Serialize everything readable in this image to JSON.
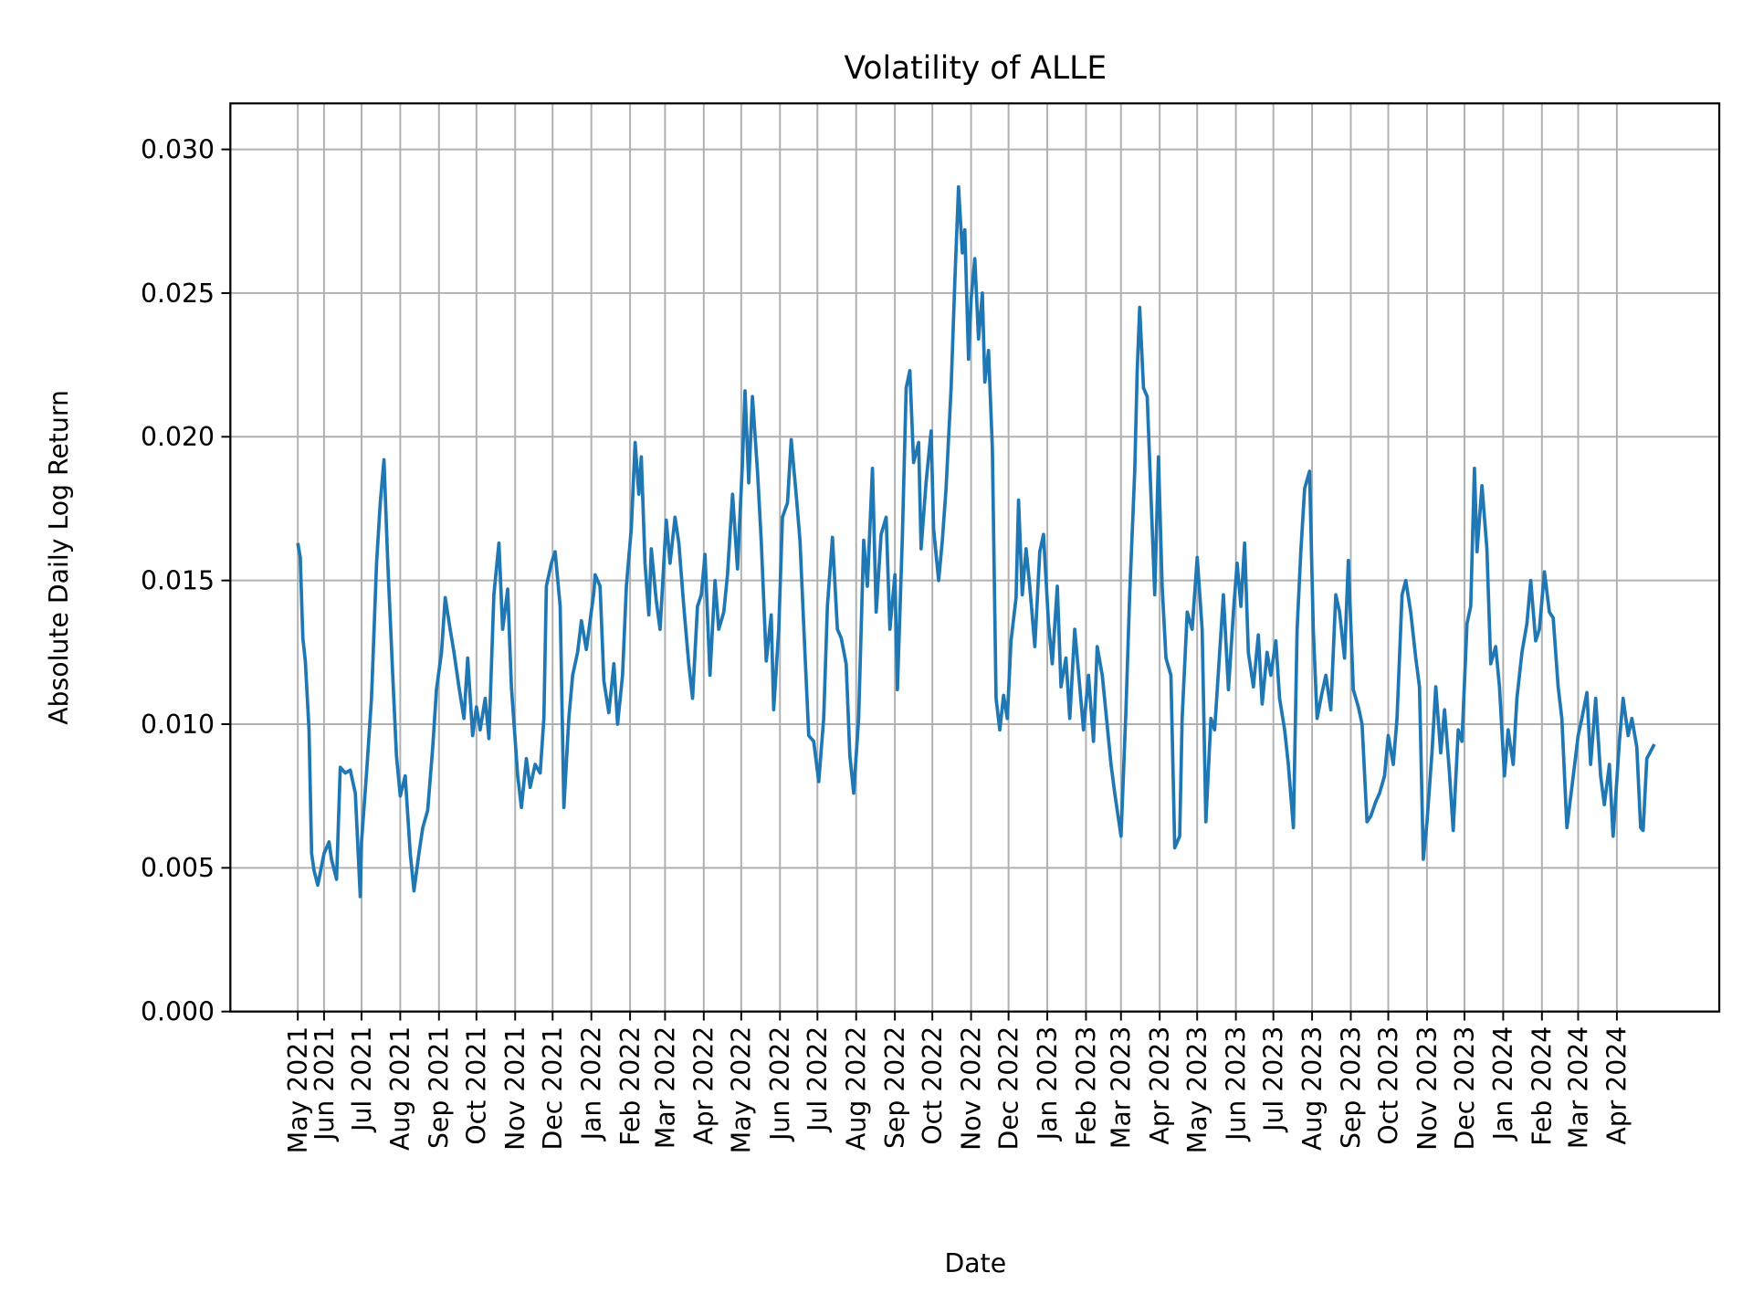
{
  "chart_data": {
    "type": "line",
    "title": "Volatility of ALLE",
    "xlabel": "Date",
    "ylabel": "Absolute Daily Log Return",
    "grid": true,
    "line_color": "#1f77b4",
    "xlim": [
      "2021-03-18",
      "2024-06-22"
    ],
    "ylim": [
      0,
      0.0316
    ],
    "yticks": [
      0.0,
      0.005,
      0.01,
      0.015,
      0.02,
      0.025,
      0.03
    ],
    "ytick_labels": [
      "0.000",
      "0.005",
      "0.010",
      "0.015",
      "0.020",
      "0.025",
      "0.030"
    ],
    "xticks": [
      "2021-05-11",
      "2021-06-01",
      "2021-07-01",
      "2021-08-01",
      "2021-09-01",
      "2021-10-01",
      "2021-11-01",
      "2021-12-01",
      "2022-01-01",
      "2022-02-01",
      "2022-03-01",
      "2022-04-01",
      "2022-05-01",
      "2022-06-01",
      "2022-07-01",
      "2022-08-01",
      "2022-09-01",
      "2022-10-01",
      "2022-11-01",
      "2022-12-01",
      "2023-01-01",
      "2023-02-01",
      "2023-03-01",
      "2023-04-01",
      "2023-05-01",
      "2023-06-01",
      "2023-07-01",
      "2023-08-01",
      "2023-09-01",
      "2023-10-01",
      "2023-11-01",
      "2023-12-01",
      "2024-01-01",
      "2024-02-01",
      "2024-03-01",
      "2024-04-01"
    ],
    "xtick_labels": [
      "May 2021",
      "Jun 2021",
      "Jul 2021",
      "Aug 2021",
      "Sep 2021",
      "Oct 2021",
      "Nov 2021",
      "Dec 2021",
      "Jan 2022",
      "Feb 2022",
      "Mar 2022",
      "Apr 2022",
      "May 2022",
      "Jun 2022",
      "Jul 2022",
      "Aug 2022",
      "Sep 2022",
      "Oct 2022",
      "Nov 2022",
      "Dec 2022",
      "Jan 2023",
      "Feb 2023",
      "Mar 2023",
      "Apr 2023",
      "May 2023",
      "Jun 2023",
      "Jul 2023",
      "Aug 2023",
      "Sep 2023",
      "Oct 2023",
      "Nov 2023",
      "Dec 2023",
      "Jan 2024",
      "Feb 2024",
      "Mar 2024",
      "Apr 2024"
    ],
    "series": [
      {
        "x": [
          "2021-05-11",
          "2021-05-13",
          "2021-05-15",
          "2021-05-17",
          "2021-05-20",
          "2021-05-22",
          "2021-05-24",
          "2021-05-27",
          "2021-06-01",
          "2021-06-05",
          "2021-06-07",
          "2021-06-11",
          "2021-06-14",
          "2021-06-18",
          "2021-06-22",
          "2021-06-26",
          "2021-06-30",
          "2021-07-01",
          "2021-07-05",
          "2021-07-09",
          "2021-07-13",
          "2021-07-16",
          "2021-07-19",
          "2021-07-22",
          "2021-07-26",
          "2021-07-29",
          "2021-08-01",
          "2021-08-05",
          "2021-08-09",
          "2021-08-12",
          "2021-08-16",
          "2021-08-19",
          "2021-08-23",
          "2021-08-27",
          "2021-08-30",
          "2021-09-03",
          "2021-09-06",
          "2021-09-10",
          "2021-09-13",
          "2021-09-17",
          "2021-09-21",
          "2021-09-24",
          "2021-09-28",
          "2021-10-01",
          "2021-10-04",
          "2021-10-08",
          "2021-10-11",
          "2021-10-15",
          "2021-10-19",
          "2021-10-22",
          "2021-10-26",
          "2021-10-29",
          "2021-11-03",
          "2021-11-06",
          "2021-11-10",
          "2021-11-13",
          "2021-11-17",
          "2021-11-21",
          "2021-11-24",
          "2021-11-26",
          "2021-11-30",
          "2021-12-03",
          "2021-12-07",
          "2021-12-10",
          "2021-12-14",
          "2021-12-17",
          "2021-12-21",
          "2021-12-24",
          "2021-12-28",
          "2022-01-03",
          "2022-01-04",
          "2022-01-08",
          "2022-01-11",
          "2022-01-15",
          "2022-01-19",
          "2022-01-22",
          "2022-01-26",
          "2022-01-29",
          "2022-02-02",
          "2022-02-05",
          "2022-02-08",
          "2022-02-10",
          "2022-02-13",
          "2022-02-16",
          "2022-02-18",
          "2022-02-22",
          "2022-02-25",
          "2022-03-02",
          "2022-03-05",
          "2022-03-09",
          "2022-03-12",
          "2022-03-16",
          "2022-03-20",
          "2022-03-23",
          "2022-03-27",
          "2022-03-30",
          "2022-04-02",
          "2022-04-06",
          "2022-04-10",
          "2022-04-13",
          "2022-04-17",
          "2022-04-20",
          "2022-04-24",
          "2022-04-28",
          "2022-05-02",
          "2022-05-04",
          "2022-05-07",
          "2022-05-10",
          "2022-05-14",
          "2022-05-17",
          "2022-05-21",
          "2022-05-25",
          "2022-05-27",
          "2022-05-31",
          "2022-06-03",
          "2022-06-07",
          "2022-06-10",
          "2022-06-14",
          "2022-06-17",
          "2022-06-21",
          "2022-06-24",
          "2022-06-28",
          "2022-07-02",
          "2022-07-06",
          "2022-07-09",
          "2022-07-13",
          "2022-07-17",
          "2022-07-20",
          "2022-07-24",
          "2022-07-27",
          "2022-07-30",
          "2022-08-03",
          "2022-08-07",
          "2022-08-10",
          "2022-08-14",
          "2022-08-17",
          "2022-08-21",
          "2022-08-25",
          "2022-08-28",
          "2022-09-01",
          "2022-09-03",
          "2022-09-07",
          "2022-09-10",
          "2022-09-13",
          "2022-09-16",
          "2022-09-20",
          "2022-09-22",
          "2022-09-26",
          "2022-09-30",
          "2022-10-02",
          "2022-10-06",
          "2022-10-09",
          "2022-10-12",
          "2022-10-16",
          "2022-10-19",
          "2022-10-22",
          "2022-10-25",
          "2022-10-27",
          "2022-10-30",
          "2022-11-01",
          "2022-11-04",
          "2022-11-07",
          "2022-11-10",
          "2022-11-12",
          "2022-11-15",
          "2022-11-18",
          "2022-11-21",
          "2022-11-24",
          "2022-11-27",
          "2022-11-30",
          "2022-12-03",
          "2022-12-07",
          "2022-12-09",
          "2022-12-12",
          "2022-12-15",
          "2022-12-18",
          "2022-12-22",
          "2022-12-26",
          "2022-12-29",
          "2023-01-02",
          "2023-01-05",
          "2023-01-09",
          "2023-01-12",
          "2023-01-16",
          "2023-01-19",
          "2023-01-23",
          "2023-01-27",
          "2023-01-30",
          "2023-02-03",
          "2023-02-07",
          "2023-02-10",
          "2023-02-14",
          "2023-02-17",
          "2023-02-21",
          "2023-02-24",
          "2023-03-01",
          "2023-03-05",
          "2023-03-08",
          "2023-03-12",
          "2023-03-14",
          "2023-03-16",
          "2023-03-19",
          "2023-03-22",
          "2023-03-25",
          "2023-03-28",
          "2023-03-31",
          "2023-04-03",
          "2023-04-06",
          "2023-04-10",
          "2023-04-13",
          "2023-04-17",
          "2023-04-19",
          "2023-04-23",
          "2023-04-27",
          "2023-05-01",
          "2023-05-05",
          "2023-05-08",
          "2023-05-12",
          "2023-05-15",
          "2023-05-19",
          "2023-05-22",
          "2023-05-26",
          "2023-05-30",
          "2023-06-02",
          "2023-06-05",
          "2023-06-08",
          "2023-06-11",
          "2023-06-15",
          "2023-06-19",
          "2023-06-22",
          "2023-06-26",
          "2023-06-29",
          "2023-07-03",
          "2023-07-06",
          "2023-07-10",
          "2023-07-13",
          "2023-07-17",
          "2023-07-20",
          "2023-07-23",
          "2023-07-26",
          "2023-07-30",
          "2023-08-02",
          "2023-08-05",
          "2023-08-09",
          "2023-08-12",
          "2023-08-16",
          "2023-08-20",
          "2023-08-23",
          "2023-08-27",
          "2023-08-30",
          "2023-09-03",
          "2023-09-07",
          "2023-09-10",
          "2023-09-14",
          "2023-09-17",
          "2023-09-21",
          "2023-09-24",
          "2023-09-28",
          "2023-10-01",
          "2023-10-05",
          "2023-10-08",
          "2023-10-12",
          "2023-10-15",
          "2023-10-19",
          "2023-10-23",
          "2023-10-26",
          "2023-10-29",
          "2023-11-01",
          "2023-11-05",
          "2023-11-08",
          "2023-11-12",
          "2023-11-15",
          "2023-11-19",
          "2023-11-22",
          "2023-11-26",
          "2023-11-29",
          "2023-12-03",
          "2023-12-06",
          "2023-12-09",
          "2023-12-11",
          "2023-12-15",
          "2023-12-19",
          "2023-12-22",
          "2023-12-26",
          "2023-12-29",
          "2024-01-02",
          "2024-01-05",
          "2024-01-09",
          "2024-01-12",
          "2024-01-16",
          "2024-01-20",
          "2024-01-23",
          "2024-01-27",
          "2024-01-30",
          "2024-02-03",
          "2024-02-07",
          "2024-02-10",
          "2024-02-14",
          "2024-02-17",
          "2024-02-21",
          "2024-02-25",
          "2024-03-01",
          "2024-03-04",
          "2024-03-08",
          "2024-03-11",
          "2024-03-15",
          "2024-03-19",
          "2024-03-22",
          "2024-03-26",
          "2024-03-29",
          "2024-04-03",
          "2024-04-06",
          "2024-04-10",
          "2024-04-13",
          "2024-04-17",
          "2024-04-20",
          "2024-04-22",
          "2024-04-25",
          "2024-05-01"
        ],
        "y": [
          0.0163,
          0.0158,
          0.013,
          0.0122,
          0.0098,
          0.0055,
          0.0049,
          0.0044,
          0.0055,
          0.0059,
          0.0053,
          0.0046,
          0.0085,
          0.0083,
          0.0084,
          0.0076,
          0.004,
          0.0059,
          0.0083,
          0.0109,
          0.0156,
          0.0177,
          0.0192,
          0.0156,
          0.0117,
          0.0089,
          0.0075,
          0.0082,
          0.0055,
          0.0042,
          0.0055,
          0.0064,
          0.007,
          0.0092,
          0.0112,
          0.0125,
          0.0144,
          0.0133,
          0.0125,
          0.0113,
          0.0102,
          0.0123,
          0.0096,
          0.0106,
          0.0098,
          0.0109,
          0.0095,
          0.0145,
          0.0163,
          0.0133,
          0.0147,
          0.0113,
          0.0082,
          0.0071,
          0.0088,
          0.0078,
          0.0086,
          0.0083,
          0.0102,
          0.0148,
          0.0156,
          0.016,
          0.0141,
          0.0071,
          0.0102,
          0.0117,
          0.0125,
          0.0136,
          0.0126,
          0.0146,
          0.0152,
          0.0148,
          0.0115,
          0.0104,
          0.0121,
          0.01,
          0.0117,
          0.0148,
          0.0168,
          0.0198,
          0.018,
          0.0193,
          0.0156,
          0.0138,
          0.0161,
          0.0143,
          0.0133,
          0.0171,
          0.0156,
          0.0172,
          0.0163,
          0.0141,
          0.0121,
          0.0109,
          0.0141,
          0.0145,
          0.0159,
          0.0117,
          0.015,
          0.0133,
          0.0139,
          0.0152,
          0.018,
          0.0154,
          0.0191,
          0.0216,
          0.0184,
          0.0214,
          0.0188,
          0.0164,
          0.0122,
          0.0138,
          0.0105,
          0.0133,
          0.0172,
          0.0177,
          0.0199,
          0.018,
          0.0164,
          0.0125,
          0.0096,
          0.0094,
          0.008,
          0.0102,
          0.0141,
          0.0165,
          0.0133,
          0.013,
          0.0121,
          0.0089,
          0.0076,
          0.0102,
          0.0164,
          0.0148,
          0.0189,
          0.0139,
          0.0166,
          0.0172,
          0.0133,
          0.0152,
          0.0112,
          0.0165,
          0.0217,
          0.0223,
          0.0191,
          0.0198,
          0.0161,
          0.0184,
          0.0202,
          0.0168,
          0.015,
          0.0164,
          0.0182,
          0.0217,
          0.0254,
          0.0287,
          0.0264,
          0.0272,
          0.0227,
          0.0248,
          0.0262,
          0.0234,
          0.025,
          0.0219,
          0.023,
          0.0196,
          0.0109,
          0.0098,
          0.011,
          0.0102,
          0.0129,
          0.0144,
          0.0178,
          0.0145,
          0.0161,
          0.0148,
          0.0127,
          0.016,
          0.0166,
          0.0135,
          0.0121,
          0.0148,
          0.0113,
          0.0123,
          0.0102,
          0.0133,
          0.0113,
          0.0098,
          0.0117,
          0.0094,
          0.0127,
          0.0117,
          0.0104,
          0.0086,
          0.0076,
          0.0061,
          0.0105,
          0.0145,
          0.0188,
          0.0223,
          0.0245,
          0.0217,
          0.0214,
          0.018,
          0.0145,
          0.0193,
          0.0148,
          0.0123,
          0.0117,
          0.0057,
          0.0061,
          0.0102,
          0.0139,
          0.0133,
          0.0158,
          0.0133,
          0.0066,
          0.0102,
          0.0098,
          0.0125,
          0.0145,
          0.0112,
          0.0139,
          0.0156,
          0.0141,
          0.0163,
          0.0125,
          0.0113,
          0.0131,
          0.0107,
          0.0125,
          0.0117,
          0.0129,
          0.0109,
          0.0098,
          0.0086,
          0.0064,
          0.0133,
          0.016,
          0.0182,
          0.0188,
          0.0133,
          0.0102,
          0.0111,
          0.0117,
          0.0105,
          0.0145,
          0.0139,
          0.0123,
          0.0157,
          0.0112,
          0.0106,
          0.01,
          0.0066,
          0.0068,
          0.0073,
          0.0076,
          0.0082,
          0.0096,
          0.0086,
          0.0102,
          0.0145,
          0.015,
          0.0139,
          0.0123,
          0.0113,
          0.0053,
          0.0066,
          0.009,
          0.0113,
          0.009,
          0.0105,
          0.0083,
          0.0063,
          0.0098,
          0.0094,
          0.0135,
          0.0141,
          0.0189,
          0.016,
          0.0183,
          0.0161,
          0.0121,
          0.0127,
          0.0113,
          0.0082,
          0.0098,
          0.0086,
          0.0109,
          0.0125,
          0.0135,
          0.015,
          0.0129,
          0.0133,
          0.0153,
          0.0139,
          0.0137,
          0.0113,
          0.0102,
          0.0064,
          0.0078,
          0.0096,
          0.0102,
          0.0111,
          0.0086,
          0.0109,
          0.0082,
          0.0072,
          0.0086,
          0.0061,
          0.0094,
          0.0109,
          0.0096,
          0.0102,
          0.0092,
          0.0064,
          0.0063,
          0.0088,
          0.0093
        ]
      }
    ]
  }
}
